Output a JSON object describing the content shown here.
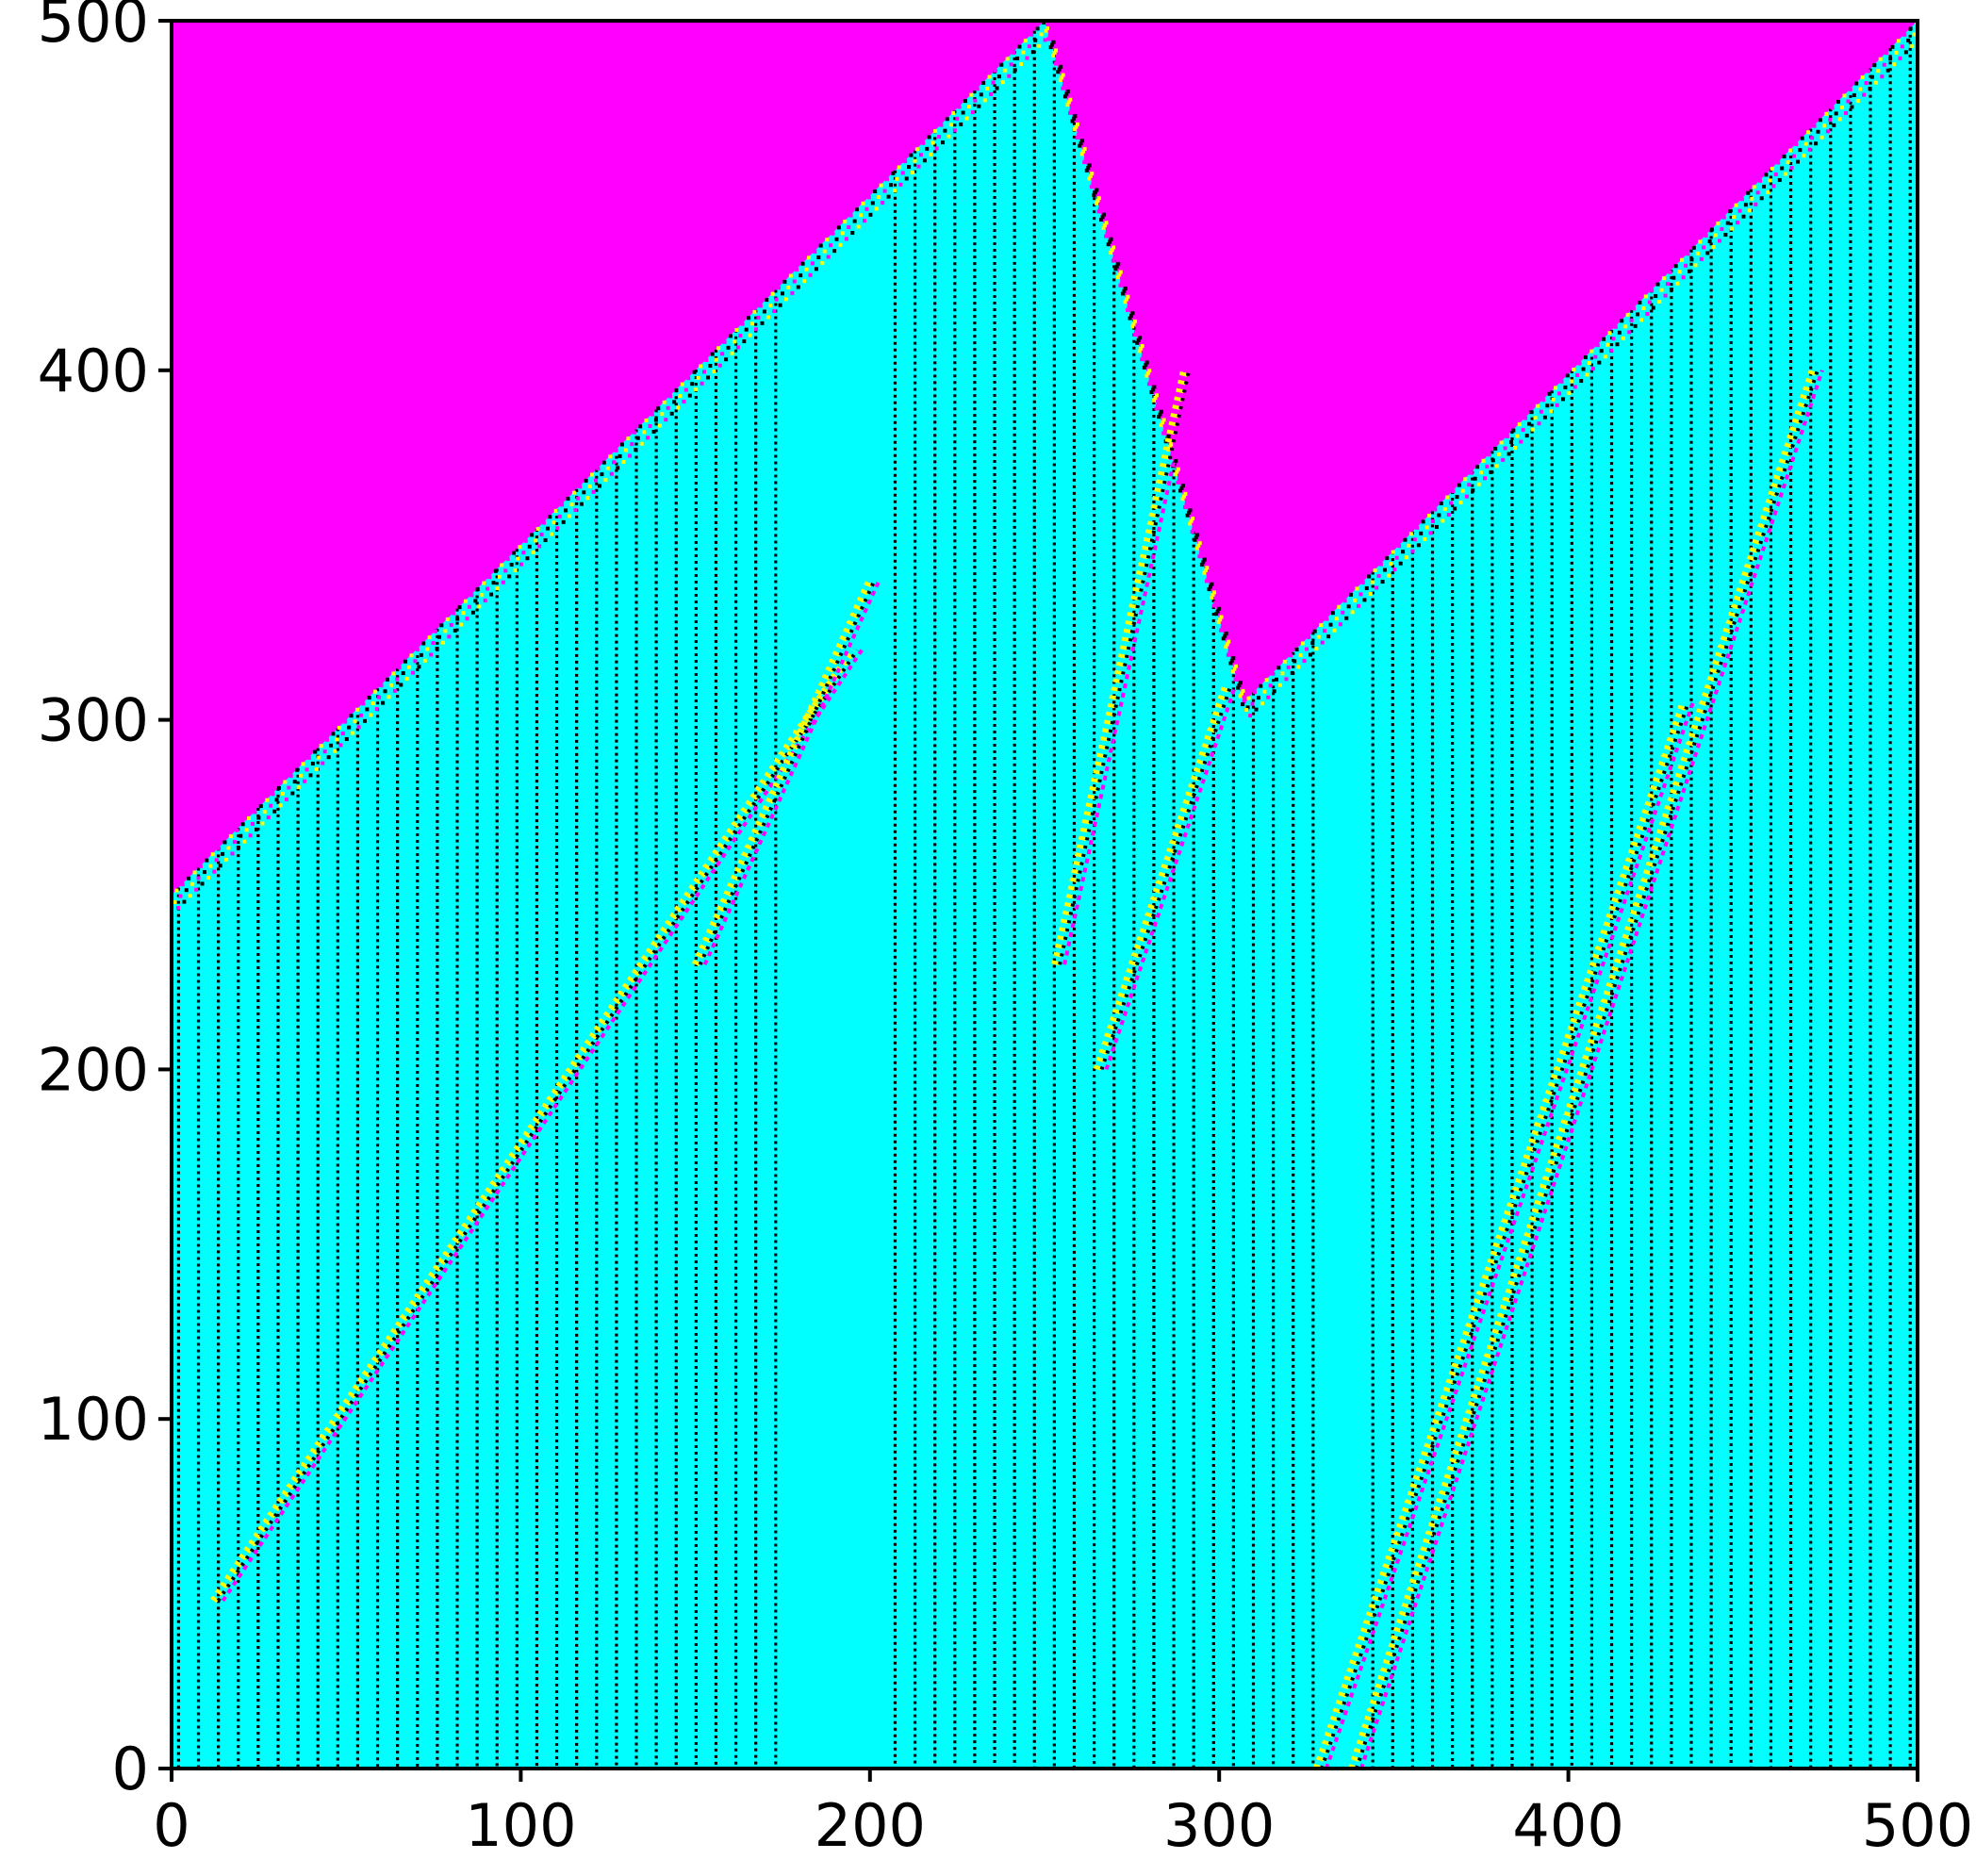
{
  "chart_data": {
    "type": "heatmap",
    "title": "",
    "xlabel": "",
    "ylabel": "",
    "xlim": [
      0,
      500
    ],
    "ylim": [
      0,
      500
    ],
    "x_ticks": [
      "0",
      "100",
      "200",
      "300",
      "400",
      "500"
    ],
    "y_ticks": [
      "0",
      "100",
      "200",
      "300",
      "400",
      "500"
    ],
    "grid": false,
    "legend": "none",
    "colors": {
      "background_region": "#ff00ff",
      "evolved_region": "#00ffff",
      "stripe": "#000000",
      "accent_yellow": "#ffff00",
      "accent_magenta": "#ff00ff"
    },
    "boundaries": [
      {
        "name": "front-1",
        "from": [
          0,
          250
        ],
        "to": [
          250,
          500
        ]
      },
      {
        "name": "front-2",
        "from": [
          250,
          500
        ],
        "to": [
          307,
          305
        ]
      },
      {
        "name": "front-3",
        "from": [
          307,
          305
        ],
        "to": [
          500,
          500
        ]
      }
    ],
    "diagonal_structures": [
      {
        "from": [
          12,
          48
        ],
        "to": [
          195,
          320
        ]
      },
      {
        "from": [
          150,
          230
        ],
        "to": [
          200,
          340
        ]
      },
      {
        "from": [
          328,
          0
        ],
        "to": [
          433,
          305
        ]
      },
      {
        "from": [
          338,
          0
        ],
        "to": [
          470,
          400
        ]
      },
      {
        "from": [
          265,
          200
        ],
        "to": [
          302,
          310
        ]
      },
      {
        "from": [
          253,
          230
        ],
        "to": [
          290,
          400
        ]
      }
    ]
  }
}
